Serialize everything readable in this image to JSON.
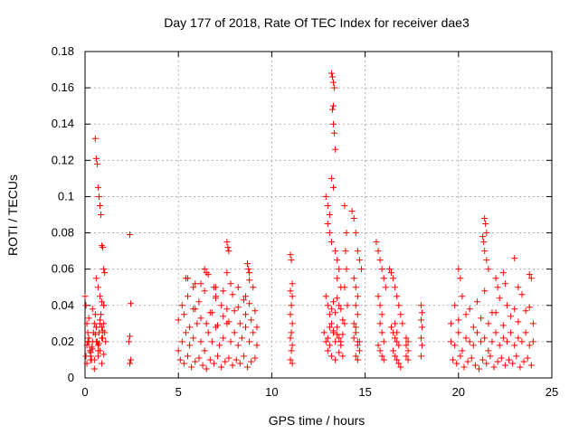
{
  "chart_data": {
    "type": "scatter",
    "title": "Day 177 of 2018, Rate Of TEC Index for receiver dae3",
    "xlabel": "GPS time / hours",
    "ylabel": "ROTI / TECUs",
    "xlim": [
      0,
      25
    ],
    "ylim": [
      0,
      0.18
    ],
    "x_ticks": [
      "0",
      "5",
      "10",
      "15",
      "20",
      "25"
    ],
    "y_ticks": [
      "0",
      "0.02",
      "0.04",
      "0.06",
      "0.08",
      "0.1",
      "0.12",
      "0.14",
      "0.16",
      "0.18"
    ],
    "grid": true,
    "marker": "plus",
    "color": "#ff0000",
    "series": [
      {
        "x": [
          0.0,
          0.05,
          0.1,
          0.15,
          0.2,
          0.25,
          0.3,
          0.35,
          0.4,
          0.45,
          0.5,
          0.55,
          0.6,
          0.65,
          0.7,
          0.75,
          0.8,
          0.85,
          0.9,
          0.95,
          1.0,
          1.05,
          1.1,
          0.05,
          0.1,
          0.2,
          0.3,
          0.4,
          0.5,
          0.6,
          0.7,
          0.8,
          0.9,
          1.0,
          0.1,
          0.3,
          0.5,
          0.7,
          0.9,
          0.2,
          0.4,
          0.6,
          0.8,
          1.0,
          0.15,
          0.35,
          0.55,
          0.75,
          0.95,
          0.55,
          0.6,
          0.65,
          0.7,
          0.75,
          0.8,
          0.85,
          0.9,
          0.95,
          1.0,
          1.05,
          0.6,
          0.7,
          0.8,
          0.9,
          1.0,
          2.4,
          2.45,
          2.4,
          2.35,
          2.45,
          2.4
        ],
        "y": [
          0.045,
          0.04,
          0.03,
          0.025,
          0.02,
          0.015,
          0.012,
          0.01,
          0.02,
          0.025,
          0.03,
          0.035,
          0.028,
          0.02,
          0.015,
          0.025,
          0.03,
          0.035,
          0.028,
          0.022,
          0.03,
          0.025,
          0.02,
          0.012,
          0.018,
          0.022,
          0.014,
          0.016,
          0.01,
          0.02,
          0.018,
          0.015,
          0.022,
          0.013,
          0.008,
          0.01,
          0.005,
          0.012,
          0.008,
          0.033,
          0.038,
          0.028,
          0.032,
          0.04,
          0.02,
          0.017,
          0.024,
          0.019,
          0.026,
          0.132,
          0.121,
          0.118,
          0.105,
          0.1,
          0.095,
          0.09,
          0.073,
          0.072,
          0.06,
          0.058,
          0.055,
          0.05,
          0.045,
          0.042,
          0.04,
          0.079,
          0.041,
          0.023,
          0.02,
          0.01,
          0.008
        ]
      },
      {
        "x": [
          5.0,
          5.2,
          5.4,
          5.6,
          5.8,
          6.0,
          6.2,
          6.4,
          6.6,
          6.8,
          7.0,
          7.2,
          7.4,
          7.6,
          7.8,
          8.0,
          8.2,
          8.4,
          8.6,
          8.8,
          9.0,
          9.2,
          5.1,
          5.3,
          5.5,
          5.7,
          5.9,
          6.1,
          6.3,
          6.5,
          6.7,
          6.9,
          7.1,
          7.3,
          7.5,
          7.7,
          7.9,
          8.1,
          8.3,
          8.5,
          8.7,
          8.9,
          9.1,
          5.0,
          5.3,
          5.6,
          5.9,
          6.2,
          6.5,
          6.8,
          7.1,
          7.4,
          7.7,
          8.0,
          8.3,
          8.6,
          8.9,
          9.2,
          5.2,
          5.5,
          5.8,
          6.1,
          6.4,
          6.7,
          7.0,
          7.3,
          7.6,
          7.9,
          8.2,
          8.5,
          8.8,
          9.1,
          5.4,
          5.8,
          6.2,
          6.6,
          7.0,
          7.4,
          7.6,
          7.8,
          8.2,
          8.6,
          8.8,
          9.0,
          7.6,
          7.65,
          7.7,
          8.7,
          8.75,
          8.8,
          6.9,
          7.0,
          5.5,
          5.9,
          6.5,
          6.4
        ],
        "y": [
          0.015,
          0.02,
          0.025,
          0.018,
          0.022,
          0.03,
          0.02,
          0.015,
          0.025,
          0.02,
          0.028,
          0.018,
          0.022,
          0.03,
          0.02,
          0.025,
          0.018,
          0.022,
          0.028,
          0.02,
          0.025,
          0.018,
          0.01,
          0.008,
          0.012,
          0.006,
          0.009,
          0.011,
          0.007,
          0.005,
          0.01,
          0.008,
          0.012,
          0.006,
          0.009,
          0.011,
          0.007,
          0.01,
          0.008,
          0.012,
          0.006,
          0.009,
          0.011,
          0.032,
          0.035,
          0.028,
          0.038,
          0.033,
          0.03,
          0.036,
          0.029,
          0.034,
          0.031,
          0.037,
          0.03,
          0.035,
          0.032,
          0.028,
          0.04,
          0.045,
          0.038,
          0.042,
          0.048,
          0.036,
          0.044,
          0.04,
          0.038,
          0.046,
          0.039,
          0.043,
          0.041,
          0.037,
          0.055,
          0.05,
          0.052,
          0.057,
          0.05,
          0.048,
          0.058,
          0.052,
          0.05,
          0.045,
          0.054,
          0.05,
          0.075,
          0.072,
          0.07,
          0.063,
          0.06,
          0.058,
          0.05,
          0.045,
          0.055,
          0.052,
          0.058,
          0.06
        ]
      },
      {
        "x": [
          11.0,
          11.05,
          11.1,
          11.0,
          11.1,
          11.05,
          11.0,
          11.1,
          11.05,
          11.0,
          11.1,
          11.05,
          11.0,
          11.1
        ],
        "y": [
          0.068,
          0.065,
          0.052,
          0.048,
          0.045,
          0.04,
          0.035,
          0.03,
          0.025,
          0.022,
          0.018,
          0.015,
          0.01,
          0.008
        ]
      },
      {
        "x": [
          12.8,
          12.9,
          13.0,
          13.1,
          13.2,
          13.3,
          13.4,
          13.5,
          13.6,
          13.7,
          13.8,
          13.2,
          13.25,
          13.3,
          13.35,
          13.3,
          13.25,
          13.3,
          13.35,
          13.4,
          13.2,
          13.3,
          12.9,
          13.0,
          13.1,
          13.0,
          13.1,
          13.2,
          13.4,
          13.5,
          13.6,
          13.5,
          13.7,
          12.9,
          13.0,
          13.1,
          13.2,
          13.3,
          13.4,
          13.5,
          13.6,
          13.7,
          13.8,
          13.9,
          13.0,
          13.2,
          13.4,
          13.6,
          13.8,
          13.1,
          13.3,
          13.5,
          13.7,
          13.9,
          14.0,
          13.95,
          14.0,
          13.9,
          14.05,
          14.3,
          14.4,
          14.5,
          14.6,
          14.7,
          14.8,
          14.4,
          14.5,
          14.6,
          14.5,
          14.6,
          14.4,
          14.5,
          14.6,
          14.7,
          14.5,
          14.6,
          14.4,
          14.5,
          14.6,
          14.7
        ],
        "y": [
          0.025,
          0.02,
          0.022,
          0.018,
          0.03,
          0.025,
          0.02,
          0.028,
          0.022,
          0.018,
          0.024,
          0.168,
          0.166,
          0.163,
          0.16,
          0.15,
          0.148,
          0.14,
          0.135,
          0.126,
          0.11,
          0.105,
          0.1,
          0.095,
          0.09,
          0.085,
          0.08,
          0.075,
          0.07,
          0.065,
          0.06,
          0.055,
          0.05,
          0.045,
          0.04,
          0.035,
          0.038,
          0.042,
          0.036,
          0.044,
          0.04,
          0.038,
          0.032,
          0.03,
          0.015,
          0.012,
          0.01,
          0.014,
          0.012,
          0.028,
          0.026,
          0.024,
          0.02,
          0.095,
          0.08,
          0.07,
          0.06,
          0.05,
          0.04,
          0.092,
          0.088,
          0.08,
          0.07,
          0.065,
          0.06,
          0.055,
          0.05,
          0.045,
          0.04,
          0.035,
          0.03,
          0.025,
          0.02,
          0.015,
          0.012,
          0.01,
          0.022,
          0.028,
          0.018,
          0.02
        ]
      },
      {
        "x": [
          15.6,
          15.7,
          15.8,
          15.9,
          16.0,
          16.1,
          15.7,
          15.8,
          15.9,
          15.8,
          15.9,
          16.0,
          15.7,
          15.8,
          15.9,
          16.0,
          16.3,
          16.4,
          16.5,
          16.6,
          16.7,
          16.8,
          16.9,
          17.0,
          16.4,
          16.5,
          16.6,
          16.7,
          16.8,
          16.5,
          16.6,
          16.7,
          16.8,
          16.9,
          16.6,
          16.7,
          17.2,
          17.3,
          17.2,
          17.3,
          17.2,
          17.3,
          18.0,
          18.05,
          18.0,
          18.05,
          18.0,
          18.05,
          18.0
        ],
        "y": [
          0.075,
          0.07,
          0.065,
          0.06,
          0.055,
          0.05,
          0.045,
          0.04,
          0.035,
          0.03,
          0.025,
          0.02,
          0.018,
          0.015,
          0.012,
          0.01,
          0.06,
          0.058,
          0.055,
          0.05,
          0.045,
          0.04,
          0.035,
          0.03,
          0.028,
          0.025,
          0.022,
          0.02,
          0.018,
          0.015,
          0.012,
          0.01,
          0.008,
          0.006,
          0.03,
          0.025,
          0.022,
          0.02,
          0.018,
          0.015,
          0.012,
          0.01,
          0.04,
          0.036,
          0.032,
          0.028,
          0.022,
          0.018,
          0.012
        ]
      },
      {
        "x": [
          19.6,
          19.8,
          20.0,
          20.2,
          20.4,
          20.6,
          20.8,
          21.0,
          21.2,
          21.4,
          21.6,
          21.8,
          22.0,
          22.2,
          22.4,
          22.6,
          22.8,
          23.0,
          23.2,
          23.4,
          23.6,
          23.8,
          24.0,
          19.7,
          19.9,
          20.1,
          20.3,
          20.5,
          20.7,
          20.9,
          21.1,
          21.3,
          21.5,
          21.7,
          21.9,
          22.1,
          22.3,
          22.5,
          22.7,
          22.9,
          23.1,
          23.3,
          23.5,
          23.7,
          23.9,
          19.6,
          20.0,
          20.4,
          20.8,
          21.2,
          21.6,
          22.0,
          22.4,
          22.8,
          23.2,
          23.6,
          24.0,
          19.8,
          20.2,
          20.6,
          21.0,
          21.4,
          21.8,
          22.2,
          22.6,
          23.0,
          23.4,
          23.8,
          21.4,
          21.45,
          21.5,
          21.3,
          21.35,
          21.4,
          21.5,
          21.6,
          22.0,
          22.1,
          22.4,
          22.5,
          23.8,
          23.9,
          20.0,
          20.1,
          23.0,
          23.2
        ],
        "y": [
          0.02,
          0.018,
          0.025,
          0.015,
          0.022,
          0.02,
          0.018,
          0.025,
          0.02,
          0.022,
          0.015,
          0.02,
          0.025,
          0.018,
          0.022,
          0.02,
          0.025,
          0.018,
          0.022,
          0.02,
          0.025,
          0.018,
          0.02,
          0.01,
          0.008,
          0.012,
          0.006,
          0.009,
          0.011,
          0.007,
          0.005,
          0.01,
          0.008,
          0.012,
          0.006,
          0.009,
          0.011,
          0.007,
          0.01,
          0.008,
          0.012,
          0.006,
          0.009,
          0.011,
          0.007,
          0.03,
          0.032,
          0.035,
          0.028,
          0.033,
          0.03,
          0.036,
          0.029,
          0.034,
          0.031,
          0.037,
          0.03,
          0.04,
          0.045,
          0.038,
          0.042,
          0.048,
          0.036,
          0.044,
          0.04,
          0.038,
          0.046,
          0.039,
          0.088,
          0.085,
          0.08,
          0.078,
          0.075,
          0.07,
          0.065,
          0.06,
          0.055,
          0.05,
          0.058,
          0.052,
          0.057,
          0.055,
          0.06,
          0.055,
          0.066,
          0.05
        ]
      }
    ]
  }
}
